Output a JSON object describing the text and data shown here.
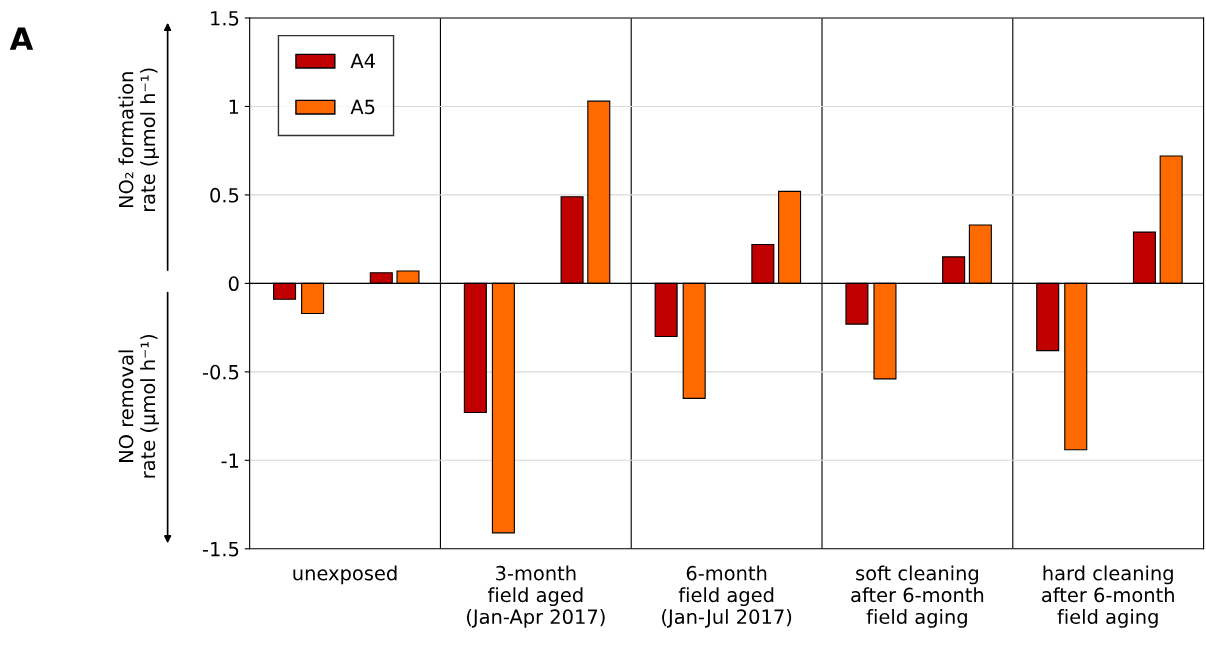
{
  "chart_data": {
    "type": "bar",
    "categories": [
      "unexposed",
      "3-month\nfield aged\n(Jan-Apr 2017)",
      "6-month\nfield aged\n(Jan-Jul 2017)",
      "soft cleaning\nafter 6-month\nfield aging",
      "hard cleaning\nafter 6-month\nfield aging"
    ],
    "series": [
      {
        "name": "A4",
        "color": "#c00000",
        "values": [
          -0.09,
          -0.73,
          -0.3,
          -0.23,
          -0.38
        ]
      },
      {
        "name": "A5",
        "color": "#ff6a00",
        "values": [
          -0.17,
          -1.41,
          -0.65,
          -0.54,
          -0.94
        ]
      },
      {
        "color": "#c00000",
        "values": [
          0.06,
          0.49,
          0.22,
          0.15,
          0.29
        ]
      },
      {
        "color": "#ff6a00",
        "values": [
          0.07,
          1.03,
          0.52,
          0.33,
          0.72
        ]
      }
    ],
    "ylim": [
      -1.5,
      1.5
    ],
    "yticks": [
      -1.5,
      -1,
      -0.5,
      0,
      0.5,
      1,
      1.5
    ],
    "grid": true,
    "legend": "top left",
    "annotations": [
      "A",
      "NO₂ formation\nrate (µmol h⁻¹)",
      "NO removal\nrate (µmol h⁻¹)"
    ]
  }
}
